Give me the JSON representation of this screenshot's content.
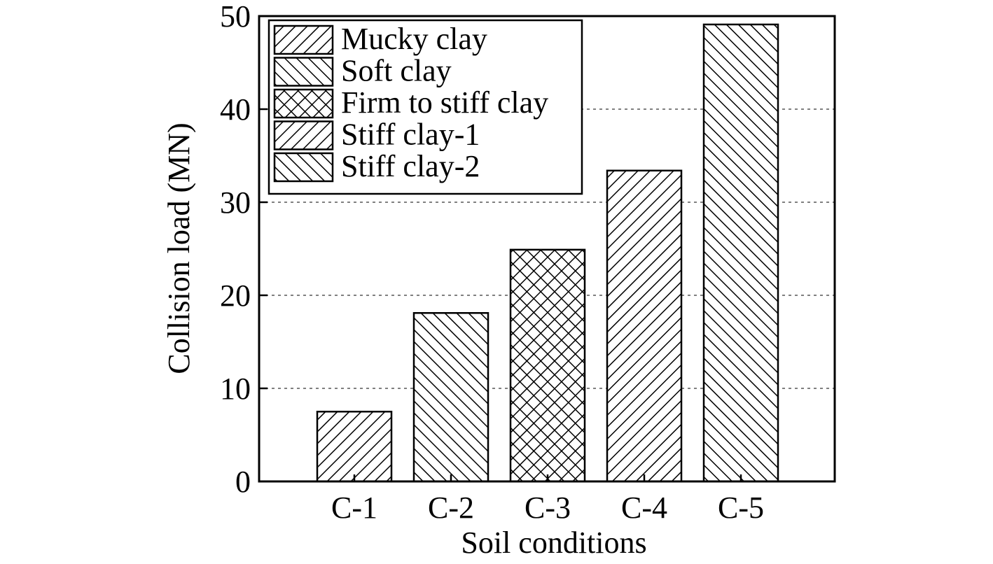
{
  "chart_data": {
    "type": "bar",
    "categories": [
      "C-1",
      "C-2",
      "C-3",
      "C-4",
      "C-5"
    ],
    "values": [
      7.5,
      18.1,
      24.9,
      33.4,
      49.1
    ],
    "xlabel": "Soil conditions",
    "ylabel": "Collision load (MN)",
    "ylim": [
      0,
      50
    ],
    "yticks": [
      "0",
      "10",
      "20",
      "30",
      "40",
      "50"
    ],
    "grid": "horizontal dotted",
    "legend_position": "top-left",
    "legend": [
      {
        "label": "Mucky clay",
        "pattern": "hatch-forward"
      },
      {
        "label": "Soft clay",
        "pattern": "hatch-back"
      },
      {
        "label": "Firm to stiff clay",
        "pattern": "crosshatch"
      },
      {
        "label": "Stiff clay-1",
        "pattern": "hatch-forward"
      },
      {
        "label": "Stiff clay-2",
        "pattern": "hatch-back"
      }
    ],
    "colors": {
      "line": "#000000",
      "fill": "#ffffff",
      "grid": "#808080"
    }
  }
}
